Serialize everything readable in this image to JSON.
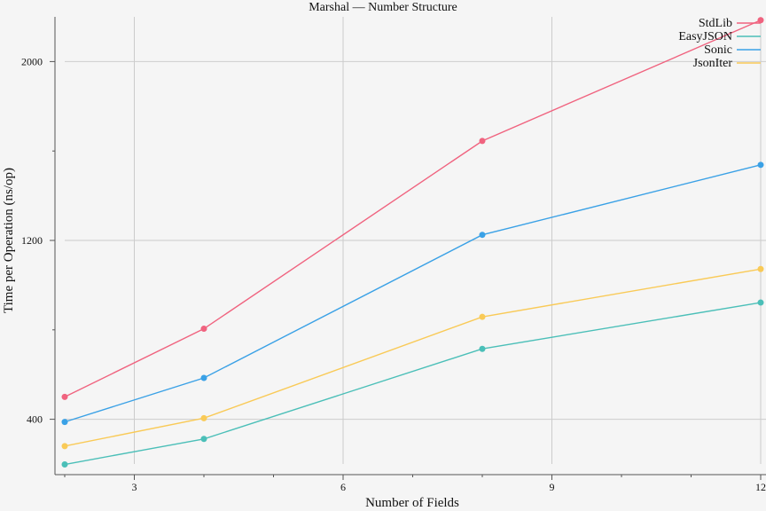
{
  "chart_data": {
    "type": "line",
    "title": "Marshal — Number Structure",
    "xlabel": "Number of Fields",
    "ylabel": "Time per Operation (ns/op)",
    "x": [
      2,
      4,
      8,
      12
    ],
    "xlim": [
      2,
      12
    ],
    "ylim": [
      200,
      2200
    ],
    "x_ticks": [
      3,
      6,
      9,
      12
    ],
    "x_minor_ticks": [
      2,
      4,
      5,
      7,
      8,
      10,
      11
    ],
    "y_ticks": [
      400,
      1200,
      2000
    ],
    "y_minor_ticks": [
      800,
      1600
    ],
    "grid": true,
    "legend_position": "top-right",
    "series": [
      {
        "name": "StdLib",
        "color": "#f0637f",
        "values": [
          500,
          805,
          1645,
          2185
        ]
      },
      {
        "name": "EasyJSON",
        "color": "#4bbfb8",
        "values": [
          198,
          312,
          715,
          922
        ]
      },
      {
        "name": "Sonic",
        "color": "#3aa1e6",
        "values": [
          388,
          585,
          1225,
          1538
        ]
      },
      {
        "name": "JsonIter",
        "color": "#f9ca57",
        "values": [
          280,
          405,
          858,
          1072
        ]
      }
    ]
  }
}
